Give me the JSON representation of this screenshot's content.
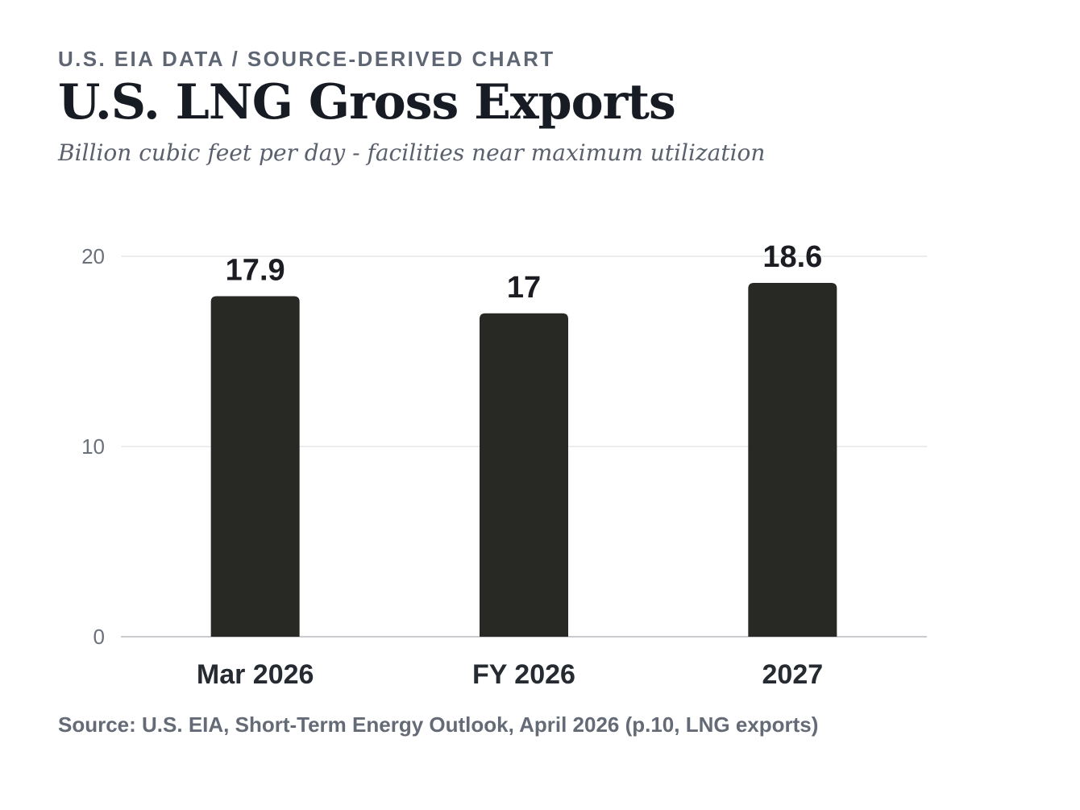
{
  "header": {
    "kicker": "U.S. EIA DATA / SOURCE-DERIVED CHART",
    "title": "U.S. LNG Gross Exports",
    "subtitle": "Billion cubic feet per day - facilities near maximum utilization"
  },
  "chart_data": {
    "type": "bar",
    "title": "U.S. LNG Gross Exports",
    "subtitle": "Billion cubic feet per day - facilities near maximum utilization",
    "categories": [
      "Mar 2026",
      "FY 2026",
      "2027"
    ],
    "values": [
      17.9,
      17,
      18.6
    ],
    "value_labels": [
      "17.9",
      "17",
      "18.6"
    ],
    "xlabel": "",
    "ylabel": "",
    "ylim": [
      0,
      20
    ],
    "yticks": [
      0,
      10,
      20
    ],
    "grid": true,
    "legend": "none",
    "colors": {
      "bar": "#282824",
      "grid": "#e4e5e7",
      "axis": "#c9cbcf",
      "tick_text": "#6b717a",
      "label_text": "#1b1d22"
    }
  },
  "footer": {
    "source": "Source: U.S. EIA, Short-Term Energy Outlook, April 2026 (p.10, LNG exports)"
  }
}
